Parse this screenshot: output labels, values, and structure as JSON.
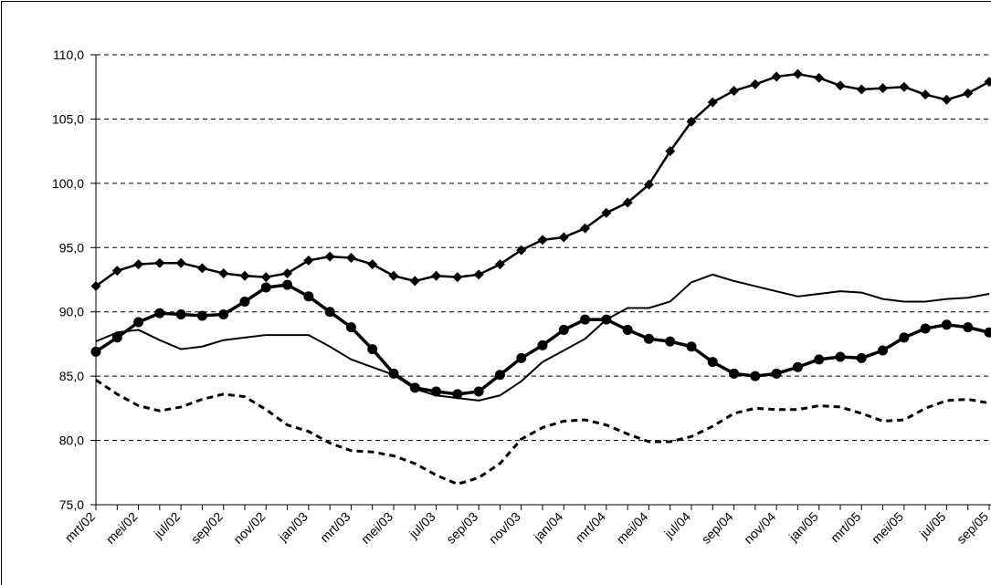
{
  "chart_data": {
    "type": "line",
    "categories": [
      "mrt/02",
      null,
      "mei/02",
      null,
      "jul/02",
      null,
      "sep/02",
      null,
      "nov/02",
      null,
      "jan/03",
      null,
      "mrt/03",
      null,
      "mei/03",
      null,
      "jul/03",
      null,
      "sep/03",
      null,
      "nov/03",
      null,
      "jan/04",
      null,
      "mrt/04",
      null,
      "mei/04",
      null,
      "jul/04",
      null,
      "sep/04",
      null,
      "nov/04",
      null,
      "jan/05",
      null,
      "mrt/05",
      null,
      "mei/05",
      null,
      "jul/05",
      null,
      "sep/05"
    ],
    "series": [
      {
        "color": "#000000",
        "marker": "diamond",
        "width": 2.5,
        "dashed": false,
        "values": [
          92.0,
          93.2,
          93.7,
          93.8,
          93.8,
          93.4,
          93.0,
          92.8,
          92.7,
          93.0,
          94.0,
          94.3,
          94.2,
          93.7,
          92.8,
          92.4,
          92.8,
          92.7,
          92.9,
          93.7,
          94.8,
          95.6,
          95.8,
          96.5,
          97.7,
          98.5,
          99.9,
          102.5,
          104.8,
          106.3,
          107.2,
          107.7,
          108.3,
          108.5,
          108.2,
          107.6,
          107.3,
          107.4,
          107.5,
          106.9,
          106.5,
          107.0,
          107.9
        ]
      },
      {
        "color": "#000000",
        "marker": "circle",
        "width": 3.5,
        "dashed": false,
        "values": [
          86.9,
          88.0,
          89.2,
          89.9,
          89.8,
          89.7,
          89.8,
          90.8,
          91.9,
          92.1,
          91.2,
          90.0,
          88.8,
          87.1,
          85.2,
          84.1,
          83.8,
          83.6,
          83.8,
          85.1,
          86.4,
          87.4,
          88.6,
          89.4,
          89.4,
          88.6,
          87.9,
          87.7,
          87.3,
          86.1,
          85.2,
          85.0,
          85.2,
          85.7,
          86.3,
          86.5,
          86.4,
          87.0,
          88.0,
          88.7,
          89.0,
          88.8,
          88.4
        ]
      },
      {
        "color": "#000000",
        "marker": "none",
        "width": 2,
        "dashed": false,
        "values": [
          87.7,
          88.4,
          88.6,
          87.8,
          87.1,
          87.3,
          87.8,
          88.0,
          88.2,
          88.2,
          88.2,
          87.3,
          86.3,
          85.7,
          85.1,
          84.0,
          83.5,
          83.3,
          83.1,
          83.5,
          84.6,
          86.1,
          87.0,
          87.9,
          89.4,
          90.3,
          90.3,
          90.8,
          92.3,
          92.9,
          92.4,
          92.0,
          91.6,
          91.2,
          91.4,
          91.6,
          91.5,
          91.0,
          90.8,
          90.8,
          91.0,
          91.1,
          91.4
        ]
      },
      {
        "color": "#000000",
        "marker": "none",
        "width": 3,
        "dashed": true,
        "values": [
          84.7,
          83.6,
          82.7,
          82.3,
          82.6,
          83.2,
          83.6,
          83.4,
          82.4,
          81.2,
          80.7,
          79.8,
          79.2,
          79.1,
          78.8,
          78.2,
          77.3,
          76.6,
          77.1,
          78.2,
          80.1,
          81.0,
          81.5,
          81.6,
          81.2,
          80.5,
          79.9,
          79.9,
          80.3,
          81.1,
          82.1,
          82.5,
          82.4,
          82.4,
          82.7,
          82.6,
          82.1,
          81.5,
          81.6,
          82.5,
          83.1,
          83.2,
          82.9
        ]
      }
    ],
    "ylim": [
      75,
      110
    ],
    "yticks": [
      {
        "value": 75,
        "label": "75,0"
      },
      {
        "value": 80,
        "label": "80,0"
      },
      {
        "value": 85,
        "label": "85,0"
      },
      {
        "value": 90,
        "label": "90,0"
      },
      {
        "value": 95,
        "label": "95,0"
      },
      {
        "value": 100,
        "label": "100,0"
      },
      {
        "value": 105,
        "label": "105,0"
      },
      {
        "value": 110,
        "label": "110,0"
      }
    ],
    "grid": true
  }
}
